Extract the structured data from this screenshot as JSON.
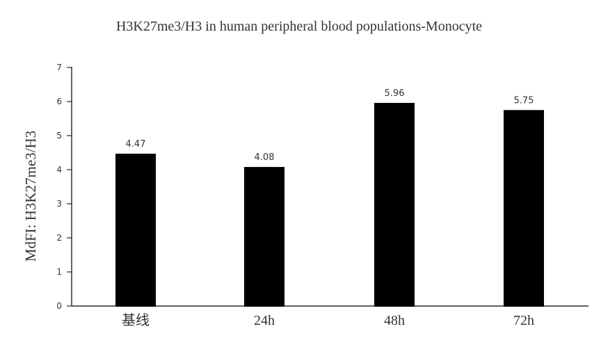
{
  "chart_data": {
    "type": "bar",
    "title": "H3K27me3/H3 in human peripheral blood populations-Monocyte",
    "xlabel": "",
    "ylabel": "MdFI: H3K27me3/H3",
    "categories": [
      "基线",
      "24h",
      "48h",
      "72h"
    ],
    "values": [
      4.47,
      4.08,
      5.96,
      5.75
    ],
    "data_labels": [
      "4.47",
      "4.08",
      "5.96",
      "5.75"
    ],
    "ylim": [
      0,
      7
    ],
    "yticks": [
      0,
      1,
      2,
      3,
      4,
      5,
      6,
      7
    ],
    "ytick_labels": [
      "0",
      "1",
      "2",
      "3",
      "4",
      "5",
      "6",
      "7"
    ],
    "bar_color": "#000000",
    "axis_color": "#000000",
    "text_color": "#333333",
    "grid": false,
    "legend": "none"
  }
}
